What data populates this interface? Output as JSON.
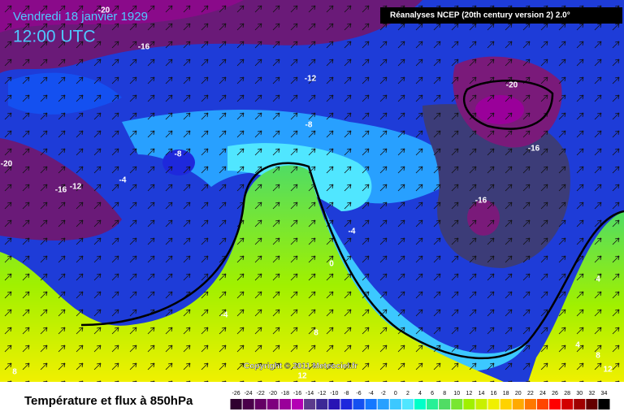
{
  "header": {
    "date": "Vendredi 18 janvier 1929",
    "time": "12:00 UTC",
    "source": "Réanalyses NCEP (20th century version 2) 2.0°"
  },
  "map": {
    "contour_labels": [
      "-20",
      "-16",
      "-12",
      "-8",
      "-20",
      "-16",
      "-12",
      "-4",
      "-8",
      "-16",
      "-16",
      "-4",
      "0",
      "-4",
      "8",
      "12",
      "4",
      "4",
      "8",
      "12",
      "8",
      "-20"
    ],
    "copyright": "Copyright © 2011 Meteociel.fr"
  },
  "footer": {
    "title": "Température et flux à 850hPa",
    "colorbar": {
      "ticks": [
        -26,
        -24,
        -22,
        -20,
        -18,
        -16,
        -14,
        -12,
        -10,
        -8,
        -6,
        -4,
        -2,
        0,
        2,
        4,
        6,
        8,
        10,
        12,
        14,
        16,
        18,
        20,
        22,
        24,
        26,
        28,
        30,
        32,
        34
      ],
      "colors": [
        "#300030",
        "#4a004a",
        "#640064",
        "#7e007e",
        "#9a009a",
        "#b400b4",
        "#5c3c8c",
        "#3c2896",
        "#2814b4",
        "#1e28dc",
        "#1450f0",
        "#1478ff",
        "#28a0ff",
        "#3cc8ff",
        "#50e6ff",
        "#00ffc8",
        "#28f096",
        "#50dc64",
        "#78e632",
        "#a0f000",
        "#c8f000",
        "#f0f000",
        "#ffd200",
        "#ffaa00",
        "#ff7800",
        "#ff4600",
        "#ff0000",
        "#d20000",
        "#a00000",
        "#640000",
        "#000000"
      ]
    }
  }
}
